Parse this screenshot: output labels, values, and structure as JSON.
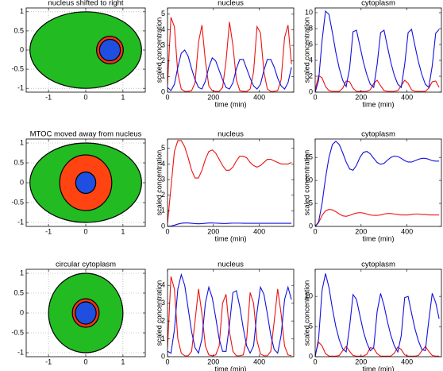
{
  "chart_data": [
    {
      "type": "geometry",
      "title": "nucleus shifted to right",
      "xlim": [
        -1.6,
        1.6
      ],
      "ylim": [
        -1.1,
        1.1
      ],
      "xticks": [
        -1,
        0,
        1
      ],
      "yticks": [
        -1,
        -0.5,
        0,
        0.5,
        1
      ],
      "grid": true,
      "shapes": [
        {
          "cx": 0,
          "cy": 0,
          "rx": 1.5,
          "ry": 1,
          "color": "#22bb22"
        },
        {
          "cx": 0.65,
          "cy": 0,
          "rx": 0.36,
          "ry": 0.36,
          "color": "#ee3311"
        },
        {
          "cx": 0.65,
          "cy": 0,
          "rx": 0.28,
          "ry": 0.28,
          "color": "#1f4fe0"
        }
      ]
    },
    {
      "type": "line",
      "title": "nucleus",
      "xlabel": "time (min)",
      "ylabel": "scaled concentration",
      "xlim": [
        0,
        550
      ],
      "ylim": [
        0,
        5.4
      ],
      "xticks": [
        0,
        200,
        400
      ],
      "yticks": [
        0,
        1,
        2,
        3,
        4,
        5
      ],
      "x": [
        0,
        15,
        30,
        45,
        60,
        75,
        90,
        105,
        120,
        135,
        150,
        165,
        180,
        195,
        210,
        225,
        240,
        255,
        270,
        285,
        300,
        315,
        330,
        345,
        360,
        375,
        390,
        405,
        420,
        435,
        450,
        465,
        480,
        495,
        510,
        525,
        540
      ],
      "series": [
        {
          "color": "#ee1111",
          "values": [
            0.5,
            4.8,
            4.2,
            1.2,
            0.2,
            0.05,
            0.05,
            0.1,
            0.6,
            3.2,
            4.3,
            2.0,
            0.4,
            0.1,
            0.05,
            0.05,
            0.3,
            2.0,
            4.5,
            3.0,
            0.8,
            0.1,
            0.05,
            0.05,
            0.2,
            1.3,
            4.2,
            3.8,
            1.3,
            0.2,
            0.05,
            0.05,
            0.1,
            0.8,
            3.5,
            4.3,
            1.8
          ]
        },
        {
          "color": "#1111dd",
          "values": [
            0.3,
            0.1,
            0.5,
            1.6,
            2.5,
            2.7,
            2.3,
            1.5,
            0.8,
            0.3,
            0.2,
            0.7,
            1.6,
            2.2,
            2.0,
            1.4,
            0.8,
            0.3,
            0.2,
            0.6,
            1.5,
            2.1,
            2.1,
            1.5,
            0.9,
            0.4,
            0.2,
            0.5,
            1.4,
            2.1,
            2.1,
            1.6,
            0.9,
            0.4,
            0.2,
            0.6,
            1.6
          ]
        }
      ]
    },
    {
      "type": "line",
      "title": "cytoplasm",
      "xlabel": "time (min)",
      "ylabel": "scaled concentration",
      "xlim": [
        0,
        550
      ],
      "ylim": [
        0,
        10.6
      ],
      "xticks": [
        0,
        200,
        400
      ],
      "yticks": [
        0,
        2,
        4,
        6,
        8,
        10
      ],
      "x": [
        0,
        15,
        30,
        45,
        60,
        75,
        90,
        105,
        120,
        135,
        150,
        165,
        180,
        195,
        210,
        225,
        240,
        255,
        270,
        285,
        300,
        315,
        330,
        345,
        360,
        375,
        390,
        405,
        420,
        435,
        450,
        465,
        480,
        495,
        510,
        525,
        540
      ],
      "series": [
        {
          "color": "#ee1111",
          "values": [
            0.3,
            2.1,
            1.8,
            0.7,
            0.2,
            0.1,
            0.1,
            0.1,
            0.5,
            1.4,
            1.3,
            0.5,
            0.1,
            0.1,
            0.1,
            0.1,
            0.3,
            1.1,
            1.5,
            0.8,
            0.2,
            0.1,
            0.1,
            0.1,
            0.2,
            0.8,
            1.5,
            1.1,
            0.3,
            0.1,
            0.1,
            0.1,
            0.1,
            0.5,
            1.3,
            1.4,
            0.6
          ]
        },
        {
          "color": "#1111dd",
          "values": [
            0,
            1.5,
            6.5,
            10.2,
            9.8,
            7.5,
            5.0,
            3.0,
            1.5,
            0.7,
            3.0,
            7.6,
            7.8,
            5.8,
            3.8,
            2.2,
            1.0,
            0.6,
            3.5,
            7.5,
            7.8,
            5.7,
            3.7,
            2.1,
            1.0,
            0.6,
            3.5,
            7.5,
            7.9,
            5.8,
            3.8,
            2.2,
            1.0,
            0.6,
            3.3,
            7.4,
            7.9
          ]
        }
      ]
    },
    {
      "type": "geometry",
      "title": "MTOC moved away from nucleus",
      "xlim": [
        -1.6,
        1.6
      ],
      "ylim": [
        -1.1,
        1.1
      ],
      "xticks": [
        -1,
        0,
        1
      ],
      "yticks": [
        -1,
        -0.5,
        0,
        0.5,
        1
      ],
      "grid": true,
      "shapes": [
        {
          "cx": 0,
          "cy": 0,
          "rx": 1.5,
          "ry": 1,
          "color": "#22bb22"
        },
        {
          "cx": 0,
          "cy": 0,
          "rx": 0.7,
          "ry": 0.7,
          "color": "#ff4411"
        },
        {
          "cx": 0,
          "cy": 0,
          "rx": 0.27,
          "ry": 0.27,
          "color": "#1f4fe0"
        }
      ]
    },
    {
      "type": "line",
      "title": "nucleus",
      "xlabel": "time (min)",
      "ylabel": "scaled concentration",
      "xlim": [
        0,
        550
      ],
      "ylim": [
        0,
        5.6
      ],
      "xticks": [
        0,
        200,
        400
      ],
      "yticks": [
        0,
        1,
        2,
        3,
        4,
        5
      ],
      "x": [
        0,
        15,
        30,
        45,
        60,
        75,
        90,
        105,
        120,
        135,
        150,
        165,
        180,
        195,
        210,
        225,
        240,
        255,
        270,
        285,
        300,
        315,
        330,
        345,
        360,
        375,
        390,
        405,
        420,
        435,
        450,
        465,
        480,
        495,
        510,
        525,
        540
      ],
      "series": [
        {
          "color": "#ee1111",
          "values": [
            0.2,
            2.5,
            4.8,
            5.5,
            5.5,
            5.1,
            4.4,
            3.6,
            3.1,
            3.1,
            3.6,
            4.3,
            4.8,
            4.9,
            4.7,
            4.3,
            3.9,
            3.6,
            3.6,
            3.8,
            4.2,
            4.5,
            4.5,
            4.4,
            4.1,
            3.9,
            3.8,
            3.9,
            4.1,
            4.3,
            4.3,
            4.2,
            4.1,
            4.0,
            4.0,
            4.0,
            4.1
          ]
        },
        {
          "color": "#1111dd",
          "values": [
            0,
            0.02,
            0.08,
            0.15,
            0.2,
            0.22,
            0.22,
            0.2,
            0.18,
            0.17,
            0.18,
            0.2,
            0.22,
            0.22,
            0.21,
            0.2,
            0.19,
            0.19,
            0.2,
            0.21,
            0.21,
            0.21,
            0.2,
            0.2,
            0.2,
            0.2,
            0.2,
            0.2,
            0.2,
            0.2,
            0.2,
            0.2,
            0.2,
            0.2,
            0.2,
            0.2,
            0.2
          ]
        }
      ]
    },
    {
      "type": "line",
      "title": "cytoplasm",
      "xlabel": "time (min)",
      "ylabel": "scaled concentration",
      "xlim": [
        0,
        550
      ],
      "ylim": [
        0,
        19
      ],
      "xticks": [
        0,
        200,
        400
      ],
      "yticks": [
        0,
        5,
        10,
        15
      ],
      "x": [
        0,
        15,
        30,
        45,
        60,
        75,
        90,
        105,
        120,
        135,
        150,
        165,
        180,
        195,
        210,
        225,
        240,
        255,
        270,
        285,
        300,
        315,
        330,
        345,
        360,
        375,
        390,
        405,
        420,
        435,
        450,
        465,
        480,
        495,
        510,
        525,
        540
      ],
      "series": [
        {
          "color": "#ee1111",
          "values": [
            0,
            0.8,
            2.4,
            3.4,
            3.7,
            3.6,
            3.2,
            2.7,
            2.3,
            2.2,
            2.4,
            2.7,
            2.9,
            3.0,
            2.9,
            2.7,
            2.5,
            2.4,
            2.4,
            2.5,
            2.7,
            2.8,
            2.8,
            2.7,
            2.6,
            2.5,
            2.5,
            2.5,
            2.6,
            2.7,
            2.7,
            2.6,
            2.6,
            2.5,
            2.5,
            2.5,
            2.5
          ]
        },
        {
          "color": "#1111dd",
          "values": [
            0,
            1.0,
            5.0,
            10.5,
            15.0,
            17.8,
            18.5,
            17.8,
            16.0,
            14.0,
            12.5,
            12.2,
            13.3,
            15.0,
            16.1,
            16.3,
            15.8,
            14.8,
            13.9,
            13.5,
            13.7,
            14.4,
            15.0,
            15.3,
            15.2,
            14.8,
            14.3,
            14.0,
            14.0,
            14.3,
            14.6,
            14.8,
            14.8,
            14.6,
            14.3,
            14.2,
            14.2
          ]
        }
      ]
    },
    {
      "type": "geometry",
      "title": "circular cytoplasm",
      "xlim": [
        -1.6,
        1.6
      ],
      "ylim": [
        -1.1,
        1.1
      ],
      "xticks": [
        -1,
        0,
        1
      ],
      "yticks": [
        -1,
        -0.5,
        0,
        0.5,
        1
      ],
      "grid": true,
      "shapes": [
        {
          "cx": 0,
          "cy": 0,
          "rx": 1,
          "ry": 1,
          "color": "#22bb22"
        },
        {
          "cx": 0,
          "cy": 0,
          "rx": 0.36,
          "ry": 0.36,
          "color": "#ee3311"
        },
        {
          "cx": 0,
          "cy": 0,
          "rx": 0.28,
          "ry": 0.28,
          "color": "#1f4fe0"
        }
      ]
    },
    {
      "type": "line",
      "title": "nucleus",
      "xlabel": "time (min)",
      "ylabel": "scaled concentration",
      "xlim": [
        0,
        550
      ],
      "ylim": [
        0,
        4.9
      ],
      "xticks": [
        0,
        200,
        400
      ],
      "yticks": [
        0,
        1,
        2,
        3,
        4
      ],
      "x": [
        0,
        15,
        30,
        45,
        60,
        75,
        90,
        105,
        120,
        135,
        150,
        165,
        180,
        195,
        210,
        225,
        240,
        255,
        270,
        285,
        300,
        315,
        330,
        345,
        360,
        375,
        390,
        405,
        420,
        435,
        450,
        465,
        480,
        495,
        510,
        525,
        540
      ],
      "series": [
        {
          "color": "#ee1111",
          "values": [
            0.5,
            4.5,
            3.8,
            1.0,
            0.2,
            0.05,
            0.05,
            0.3,
            2.0,
            3.8,
            2.4,
            0.6,
            0.1,
            0.05,
            0.1,
            0.6,
            3.0,
            3.5,
            1.4,
            0.3,
            0.05,
            0.05,
            0.1,
            1.0,
            3.6,
            3.0,
            0.9,
            0.15,
            0.05,
            0.05,
            0.3,
            2.0,
            3.8,
            2.4,
            0.6,
            0.1,
            0.05
          ]
        },
        {
          "color": "#1111dd",
          "values": [
            0.3,
            0.2,
            1.5,
            3.8,
            4.6,
            4.0,
            2.7,
            1.4,
            0.5,
            0.2,
            1.0,
            3.0,
            3.9,
            3.3,
            2.2,
            1.0,
            0.3,
            0.3,
            1.8,
            3.6,
            3.7,
            2.8,
            1.6,
            0.6,
            0.2,
            0.6,
            2.5,
            3.9,
            3.5,
            2.4,
            1.2,
            0.4,
            0.2,
            1.2,
            3.2,
            3.9,
            3.2
          ]
        }
      ]
    },
    {
      "type": "line",
      "title": "cytoplasm",
      "xlabel": "time (min)",
      "ylabel": "scaled concentration",
      "xlim": [
        0,
        550
      ],
      "ylim": [
        0,
        14.5
      ],
      "xticks": [
        0,
        200,
        400
      ],
      "yticks": [
        0,
        5,
        10
      ],
      "x": [
        0,
        15,
        30,
        45,
        60,
        75,
        90,
        105,
        120,
        135,
        150,
        165,
        180,
        195,
        210,
        225,
        240,
        255,
        270,
        285,
        300,
        315,
        330,
        345,
        360,
        375,
        390,
        405,
        420,
        435,
        450,
        465,
        480,
        495,
        510,
        525,
        540
      ],
      "series": [
        {
          "color": "#ee1111",
          "values": [
            0.3,
            2.4,
            1.8,
            0.5,
            0.1,
            0.1,
            0.1,
            0.2,
            1.0,
            1.7,
            0.9,
            0.2,
            0.1,
            0.1,
            0.1,
            0.4,
            1.5,
            1.4,
            0.5,
            0.1,
            0.1,
            0.1,
            0.1,
            0.6,
            1.6,
            1.2,
            0.3,
            0.1,
            0.1,
            0.1,
            0.2,
            1.0,
            1.7,
            0.9,
            0.2,
            0.1,
            0.1
          ]
        },
        {
          "color": "#1111dd",
          "values": [
            0,
            3.0,
            11.0,
            13.8,
            11.5,
            8.0,
            5.0,
            2.8,
            1.3,
            0.8,
            5.0,
            10.3,
            9.5,
            6.8,
            4.2,
            2.3,
            1.0,
            1.5,
            7.5,
            10.5,
            8.5,
            5.8,
            3.5,
            1.8,
            0.8,
            3.5,
            9.8,
            10.0,
            7.2,
            4.6,
            2.6,
            1.2,
            1.0,
            6.0,
            10.5,
            9.0,
            6.3
          ]
        }
      ]
    }
  ]
}
